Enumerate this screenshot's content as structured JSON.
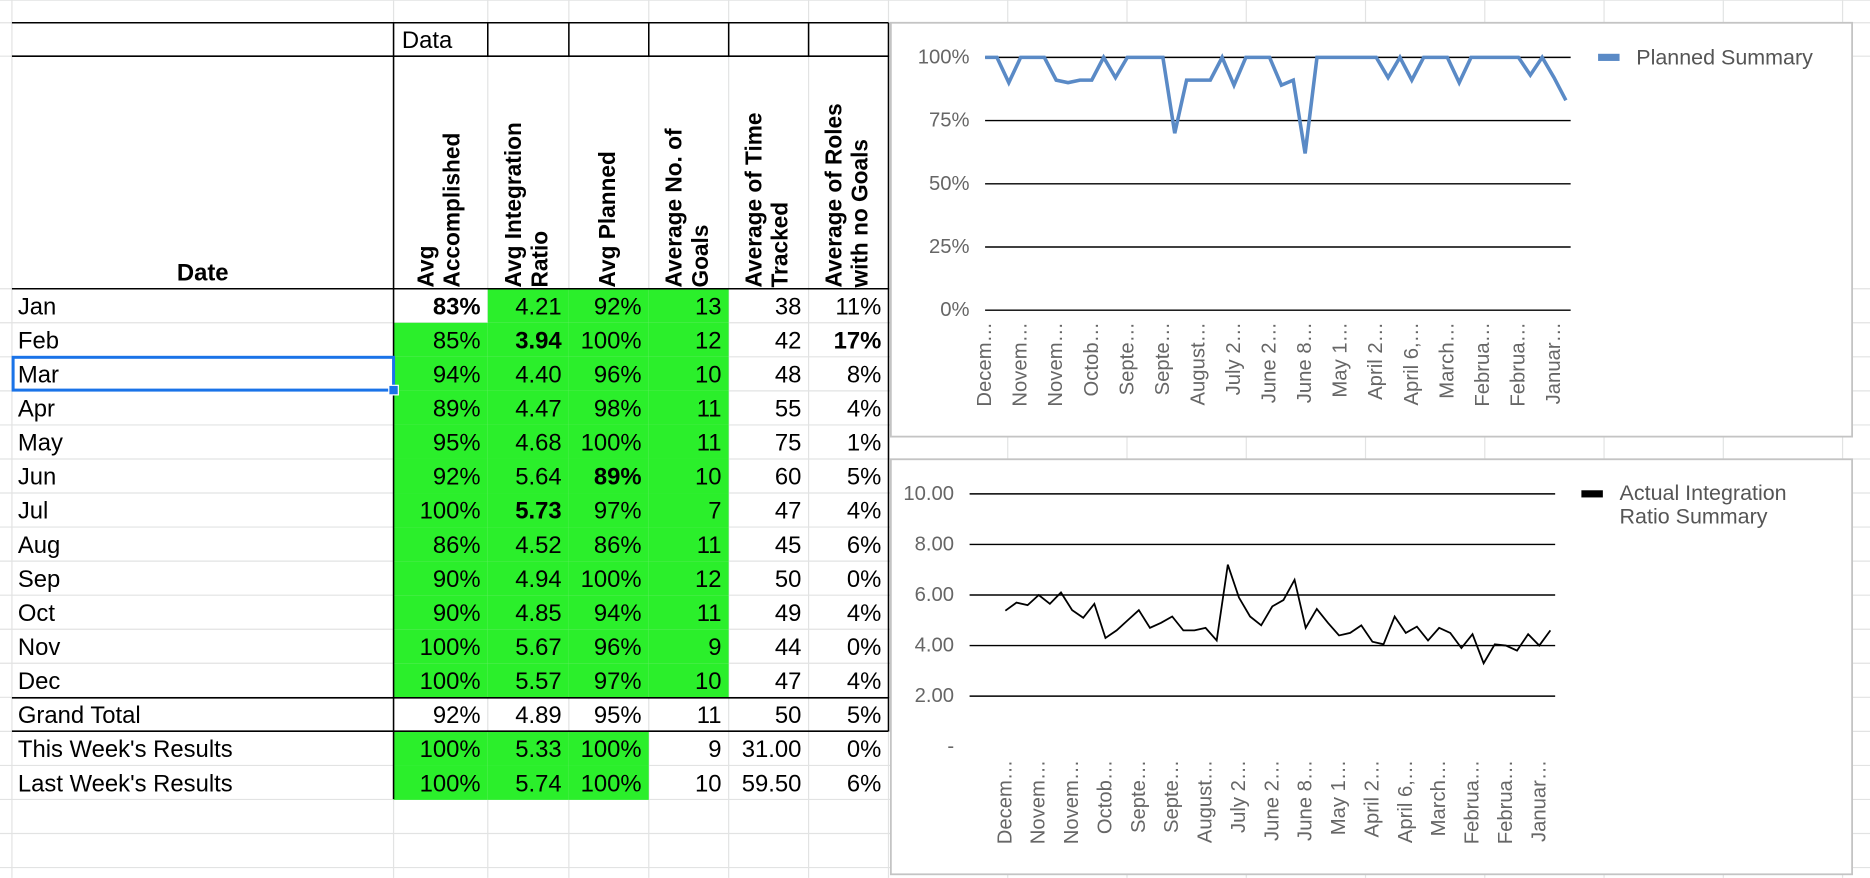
{
  "table": {
    "pivot_label": "Data",
    "row_header": "Date",
    "columns": [
      "Avg Accomplished",
      "Avg Integration Ratio",
      "Avg Planned",
      "Average No. of Goals",
      "Average of Time Tracked",
      "Average of Roles with no Goals"
    ],
    "rows": [
      [
        "Jan",
        "83%",
        "4.21",
        "92%",
        "13",
        "38",
        "11%"
      ],
      [
        "Feb",
        "85%",
        "3.94",
        "100%",
        "12",
        "42",
        "17%"
      ],
      [
        "Mar",
        "94%",
        "4.40",
        "96%",
        "10",
        "48",
        "8%"
      ],
      [
        "Apr",
        "89%",
        "4.47",
        "98%",
        "11",
        "55",
        "4%"
      ],
      [
        "May",
        "95%",
        "4.68",
        "100%",
        "11",
        "75",
        "1%"
      ],
      [
        "Jun",
        "92%",
        "5.64",
        "89%",
        "10",
        "60",
        "5%"
      ],
      [
        "Jul",
        "100%",
        "5.73",
        "97%",
        "7",
        "47",
        "4%"
      ],
      [
        "Aug",
        "86%",
        "4.52",
        "86%",
        "11",
        "45",
        "6%"
      ],
      [
        "Sep",
        "90%",
        "4.94",
        "100%",
        "12",
        "50",
        "0%"
      ],
      [
        "Oct",
        "90%",
        "4.85",
        "94%",
        "11",
        "49",
        "4%"
      ],
      [
        "Nov",
        "100%",
        "5.67",
        "96%",
        "9",
        "44",
        "0%"
      ],
      [
        "Dec",
        "100%",
        "5.57",
        "97%",
        "10",
        "47",
        "4%"
      ],
      [
        "Grand Total",
        "92%",
        "4.89",
        "95%",
        "11",
        "50",
        "5%"
      ],
      [
        "This Week's Results",
        "100%",
        "5.33",
        "100%",
        "9",
        "31.00",
        "0%"
      ],
      [
        "Last Week's Results",
        "100%",
        "5.74",
        "100%",
        "10",
        "59.50",
        "6%"
      ]
    ]
  },
  "chart_data": [
    {
      "type": "line",
      "categories": [
        "Decem…",
        null,
        null,
        "Novem…",
        null,
        null,
        "Novem…",
        null,
        null,
        "Octob…",
        null,
        null,
        "Septe…",
        null,
        null,
        "Septe…",
        null,
        null,
        "August…",
        null,
        null,
        "July 2…",
        null,
        null,
        "June 2…",
        null,
        null,
        "June 8…",
        null,
        null,
        "May 1…",
        null,
        null,
        "April 2…",
        null,
        null,
        "April 6,…",
        null,
        null,
        "March…",
        null,
        null,
        "Februa…",
        null,
        null,
        "Februa…",
        null,
        null,
        "Januar…",
        null
      ],
      "series": [
        {
          "name": "Planned Summary",
          "color": "#5a8ac6",
          "values": [
            100,
            100,
            90,
            100,
            100,
            100,
            91,
            90,
            91,
            91,
            100,
            92,
            100,
            100,
            100,
            100,
            70,
            91,
            91,
            91,
            100,
            89,
            100,
            100,
            100,
            89,
            91,
            62,
            100,
            100,
            100,
            100,
            100,
            100,
            92,
            100,
            91,
            100,
            100,
            100,
            90,
            100,
            100,
            100,
            100,
            100,
            93,
            100,
            92,
            83
          ]
        }
      ],
      "ylim": [
        0,
        100
      ],
      "yticks": [
        {
          "value": 0,
          "label": "0%"
        },
        {
          "value": 25,
          "label": "25%"
        },
        {
          "value": 50,
          "label": "50%"
        },
        {
          "value": 75,
          "label": "75%"
        },
        {
          "value": 100,
          "label": "100%"
        }
      ],
      "grid": true
    },
    {
      "type": "line",
      "categories": [
        "Decem…",
        null,
        null,
        "Novem…",
        null,
        null,
        "Novem…",
        null,
        null,
        "Octob…",
        null,
        null,
        "Septe…",
        null,
        null,
        "Septe…",
        null,
        null,
        "August…",
        null,
        null,
        "July 2…",
        null,
        null,
        "June 2…",
        null,
        null,
        "June 8…",
        null,
        null,
        "May 1…",
        null,
        null,
        "April 2…",
        null,
        null,
        "April 6,…",
        null,
        null,
        "March…",
        null,
        null,
        "Februa…",
        null,
        null,
        "Februa…",
        null,
        null,
        "Januar…",
        null
      ],
      "series": [
        {
          "name": "Actual Integration Ratio Summary",
          "color": "#000000",
          "values": [
            5.38,
            5.7,
            5.6,
            6.0,
            5.65,
            6.1,
            5.4,
            5.1,
            5.65,
            4.3,
            4.6,
            5.0,
            5.4,
            4.7,
            4.9,
            5.15,
            4.6,
            4.6,
            4.7,
            4.2,
            7.2,
            5.9,
            5.15,
            4.8,
            5.55,
            5.8,
            6.6,
            4.7,
            5.45,
            4.9,
            4.4,
            4.5,
            4.8,
            4.15,
            4.05,
            5.15,
            4.5,
            4.75,
            4.2,
            4.7,
            4.5,
            3.9,
            4.45,
            3.3,
            4.05,
            4.0,
            3.8,
            4.45,
            4.0,
            4.6
          ]
        }
      ],
      "ylim": [
        0,
        10
      ],
      "yticks": [
        {
          "value": 0,
          "label": "-"
        },
        {
          "value": 2,
          "label": "2.00"
        },
        {
          "value": 4,
          "label": "4.00"
        },
        {
          "value": 6,
          "label": "6.00"
        },
        {
          "value": 8,
          "label": "8.00"
        },
        {
          "value": 10,
          "label": "10.00"
        }
      ],
      "grid": true
    }
  ]
}
